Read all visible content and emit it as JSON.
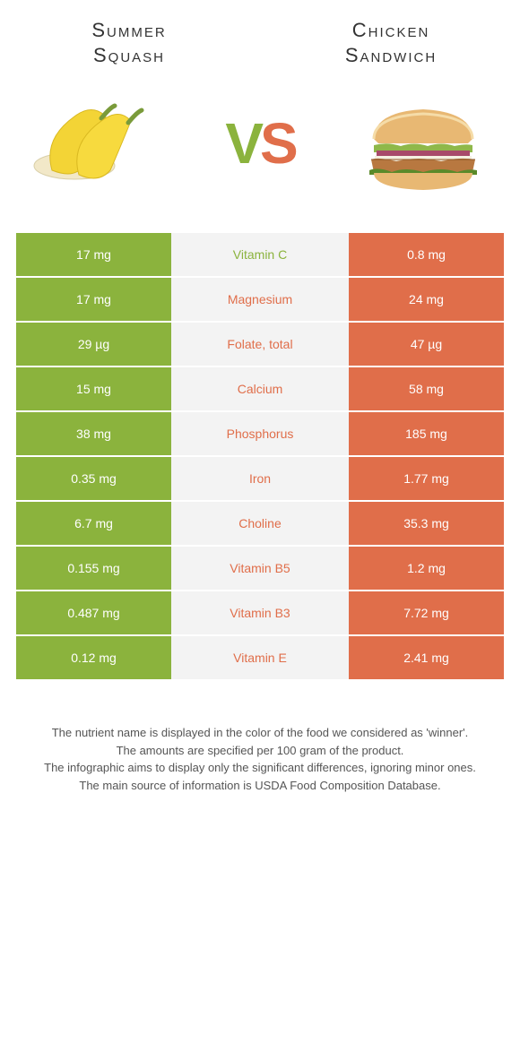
{
  "titles": {
    "left": "Summer\nSquash",
    "right": "Chicken\nSandwich"
  },
  "colors": {
    "green": "#8bb33d",
    "orange": "#e06e4a",
    "row_mid_bg": "#f3f3f3",
    "text_dark": "#333333",
    "footer_text": "#555555"
  },
  "rows": [
    {
      "left": "17 mg",
      "name": "Vitamin C",
      "right": "0.8 mg",
      "winner": "left"
    },
    {
      "left": "17 mg",
      "name": "Magnesium",
      "right": "24 mg",
      "winner": "right"
    },
    {
      "left": "29 µg",
      "name": "Folate, total",
      "right": "47 µg",
      "winner": "right"
    },
    {
      "left": "15 mg",
      "name": "Calcium",
      "right": "58 mg",
      "winner": "right"
    },
    {
      "left": "38 mg",
      "name": "Phosphorus",
      "right": "185 mg",
      "winner": "right"
    },
    {
      "left": "0.35 mg",
      "name": "Iron",
      "right": "1.77 mg",
      "winner": "right"
    },
    {
      "left": "6.7 mg",
      "name": "Choline",
      "right": "35.3 mg",
      "winner": "right"
    },
    {
      "left": "0.155 mg",
      "name": "Vitamin B5",
      "right": "1.2 mg",
      "winner": "right"
    },
    {
      "left": "0.487 mg",
      "name": "Vitamin B3",
      "right": "7.72 mg",
      "winner": "right"
    },
    {
      "left": "0.12 mg",
      "name": "Vitamin E",
      "right": "2.41 mg",
      "winner": "right"
    }
  ],
  "footer": [
    "The nutrient name is displayed in the color of the food we considered as 'winner'.",
    "The amounts are specified per 100 gram of the product.",
    "The infographic aims to display only the significant differences, ignoring minor ones.",
    "The main source of information is USDA Food Composition Database."
  ]
}
